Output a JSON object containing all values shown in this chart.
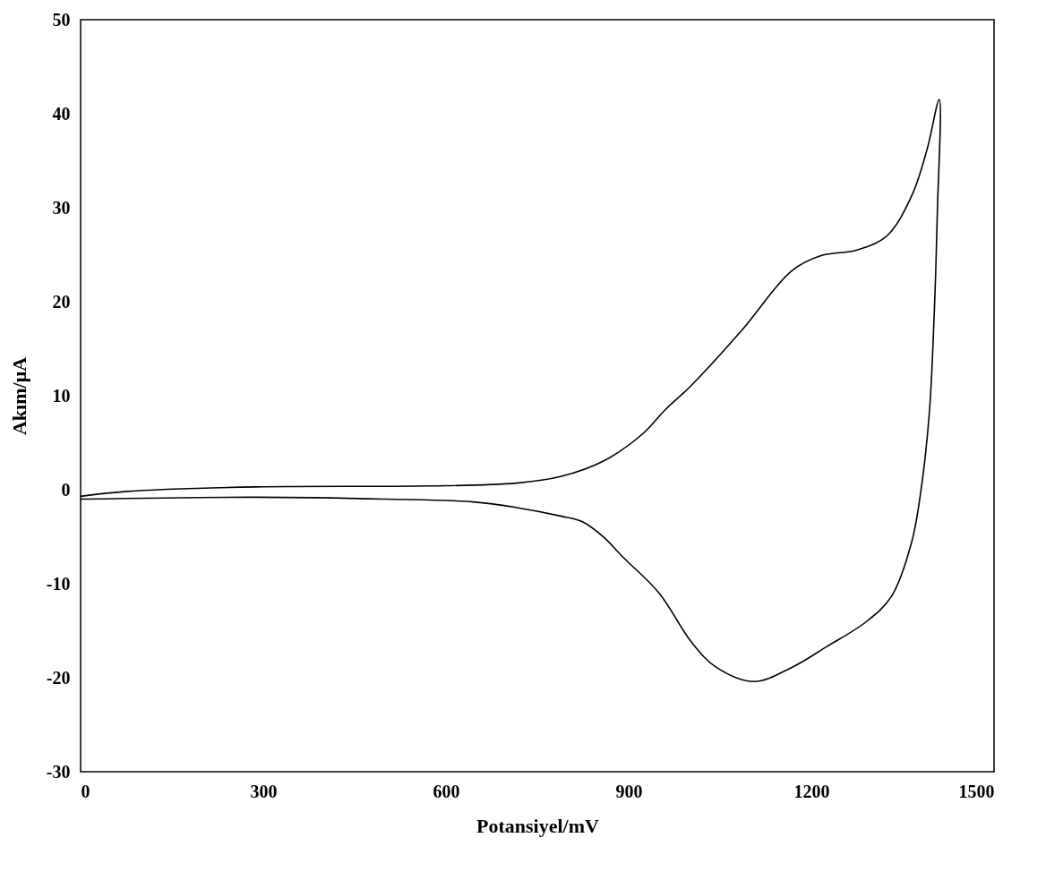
{
  "chart_data": {
    "type": "line",
    "xlabel": "Potansiyel/mV",
    "ylabel": "Akım/μA",
    "xlim": [
      0,
      1500
    ],
    "xticks": [
      0,
      300,
      600,
      900,
      1200,
      1500
    ],
    "ylim": [
      -30,
      50
    ],
    "yticks": [
      -30,
      -20,
      -10,
      0,
      10,
      20,
      30,
      40,
      50
    ],
    "grid": false,
    "marker": "none",
    "line_style": "solid",
    "series": [
      {
        "color": "#000000",
        "x": [
          0,
          72,
          287,
          573,
          716,
          788,
          860,
          924,
          960,
          1003,
          1085,
          1168,
          1216,
          1275,
          1324,
          1365,
          1390,
          1410,
          1407,
          1402,
          1394,
          1381,
          1365,
          1332,
          1291,
          1225,
          1168,
          1106,
          1044,
          1003,
          950,
          888,
          860,
          824,
          788,
          716,
          645,
          501,
          287,
          0
        ],
        "values": [
          -0.7,
          -0.2,
          0.3,
          0.4,
          0.7,
          1.4,
          3.1,
          6,
          8.5,
          11.1,
          16.9,
          23.3,
          24.9,
          25.5,
          27.0,
          31.3,
          36.2,
          41.5,
          29.7,
          19.1,
          8.4,
          0.4,
          -5.5,
          -11.3,
          -14.0,
          -16.7,
          -18.9,
          -20.4,
          -18.9,
          -16.2,
          -11,
          -7,
          -5.1,
          -3.4,
          -2.8,
          -1.9,
          -1.3,
          -1,
          -0.8,
          -1
        ]
      }
    ]
  }
}
